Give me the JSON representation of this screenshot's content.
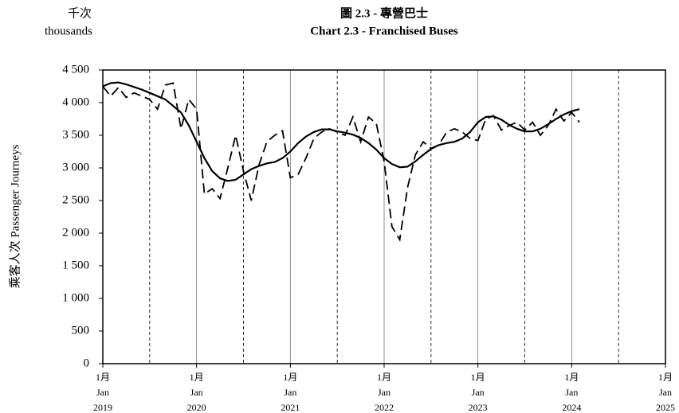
{
  "chart_data": {
    "type": "line",
    "title": "圖 2.3 -  專營巴士",
    "subtitle": "Chart 2.3 -  Franchised Buses",
    "unit_zh": "千次",
    "unit_en": "thousands",
    "ylabel": "乘客人次  Passenger Journeys",
    "x": [
      "2019-01",
      "2019-02",
      "2019-03",
      "2019-04",
      "2019-05",
      "2019-06",
      "2019-07",
      "2019-08",
      "2019-09",
      "2019-10",
      "2019-11",
      "2019-12",
      "2020-01",
      "2020-02",
      "2020-03",
      "2020-04",
      "2020-05",
      "2020-06",
      "2020-07",
      "2020-08",
      "2020-09",
      "2020-10",
      "2020-11",
      "2020-12",
      "2021-01",
      "2021-02",
      "2021-03",
      "2021-04",
      "2021-05",
      "2021-06",
      "2021-07",
      "2021-08",
      "2021-09",
      "2021-10",
      "2021-11",
      "2021-12",
      "2022-01",
      "2022-02",
      "2022-03",
      "2022-04",
      "2022-05",
      "2022-06",
      "2022-07",
      "2022-08",
      "2022-09",
      "2022-10",
      "2022-11",
      "2022-12",
      "2023-01",
      "2023-02",
      "2023-03",
      "2023-04",
      "2023-05",
      "2023-06",
      "2023-07",
      "2023-08",
      "2023-09",
      "2023-10",
      "2023-11",
      "2023-12",
      "2024-01",
      "2024-02"
    ],
    "series": [
      {
        "color": "#000000",
        "line_style": "dashed",
        "values": [
          4250,
          4100,
          4230,
          4080,
          4150,
          4100,
          4050,
          3900,
          4270,
          4300,
          3600,
          4050,
          3900,
          2600,
          2680,
          2530,
          3000,
          3500,
          2950,
          2500,
          3050,
          3400,
          3500,
          3570,
          2850,
          2900,
          3150,
          3450,
          3550,
          3600,
          3550,
          3500,
          3780,
          3400,
          3780,
          3680,
          3100,
          2100,
          1900,
          2700,
          3200,
          3400,
          3300,
          3350,
          3550,
          3600,
          3550,
          3450,
          3420,
          3750,
          3800,
          3580,
          3650,
          3700,
          3580,
          3700,
          3500,
          3650,
          3900,
          3720,
          3850,
          3700
        ]
      },
      {
        "color": "#000000",
        "line_style": "solid",
        "values": [
          4250,
          4300,
          4310,
          4280,
          4240,
          4200,
          4150,
          4100,
          4050,
          3950,
          3850,
          3650,
          3400,
          3150,
          2950,
          2840,
          2800,
          2820,
          2900,
          2980,
          3030,
          3070,
          3090,
          3150,
          3250,
          3380,
          3480,
          3550,
          3590,
          3590,
          3560,
          3540,
          3510,
          3460,
          3380,
          3280,
          3150,
          3060,
          3010,
          3020,
          3100,
          3200,
          3290,
          3350,
          3380,
          3400,
          3450,
          3550,
          3700,
          3780,
          3790,
          3740,
          3660,
          3600,
          3560,
          3560,
          3600,
          3670,
          3750,
          3820,
          3870,
          3900
        ]
      }
    ],
    "xlim": [
      "2019-01",
      "2025-01"
    ],
    "xticks": [
      {
        "value": "2019-01",
        "label": "1月\nJan\n2019"
      },
      {
        "value": "2020-01",
        "label": "1月\nJan\n2020"
      },
      {
        "value": "2021-01",
        "label": "1月\nJan\n2021"
      },
      {
        "value": "2022-01",
        "label": "1月\nJan\n2022"
      },
      {
        "value": "2023-01",
        "label": "1月\nJan\n2023"
      },
      {
        "value": "2024-01",
        "label": "1月\nJan\n2024"
      },
      {
        "value": "2025-01",
        "label": "1月\nJan\n2025"
      }
    ],
    "xminorticks": [
      "2019-07",
      "2020-07",
      "2021-07",
      "2022-07",
      "2023-07",
      "2024-07"
    ],
    "ylim": [
      0,
      4500
    ],
    "yticks": [
      0,
      500,
      {
        "value": 1000,
        "label": "1 000"
      },
      {
        "value": 1500,
        "label": "1 500"
      },
      {
        "value": 2000,
        "label": "2 000"
      },
      {
        "value": 2500,
        "label": "2 500"
      },
      {
        "value": 3000,
        "label": "3 000"
      },
      {
        "value": 3500,
        "label": "3 500"
      },
      {
        "value": 4000,
        "label": "4 000"
      },
      {
        "value": 4500,
        "label": "4 500"
      }
    ],
    "grid": true
  }
}
